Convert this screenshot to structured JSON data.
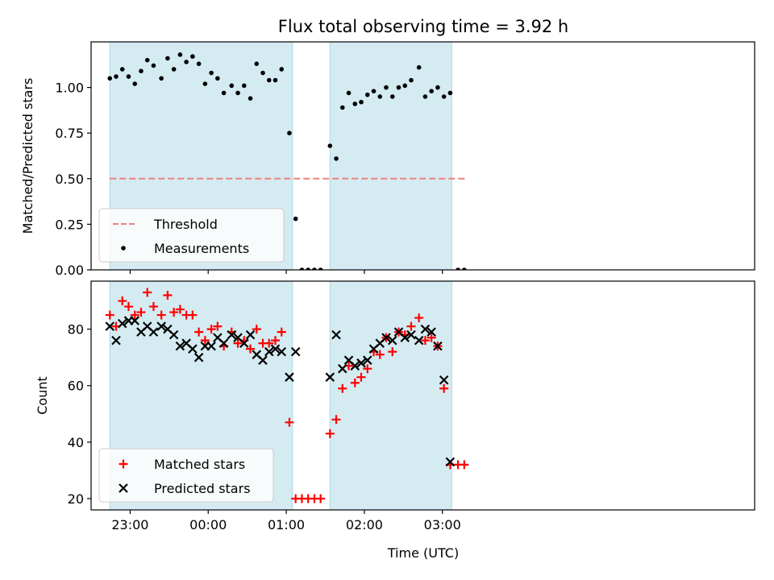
{
  "chart_data": {
    "title": "Flux total observing time = 3.92 h",
    "xlabel": "Time (UTC)",
    "x_unit": "hours since 00:00 UTC",
    "xlim": [
      -0.75,
      3.5
    ],
    "xticks": [
      {
        "value": -0.5,
        "label": "23:00"
      },
      {
        "value": 0.0,
        "label": "00:00"
      },
      {
        "value": 0.5,
        "label": "01:00"
      },
      {
        "value": 1.0,
        "label": "02:00"
      },
      {
        "value": 1.5,
        "label": "03:00"
      }
    ],
    "shaded_regions": [
      [
        -0.63,
        0.54
      ],
      [
        0.78,
        1.56
      ]
    ],
    "shade_color": "#d4ebf1",
    "panels": [
      {
        "type": "scatter",
        "ylabel": "Matched/Predicted stars",
        "ylim": [
          0.0,
          1.25
        ],
        "yticks": [
          0.0,
          0.25,
          0.5,
          0.75,
          1.0
        ],
        "ytick_labels": [
          "0.00",
          "0.25",
          "0.50",
          "0.75",
          "1.00"
        ],
        "threshold": {
          "name": "Threshold",
          "value": 0.5,
          "x_range": [
            -0.63,
            1.65
          ],
          "color": "#f08080"
        },
        "legend": [
          "Threshold",
          "Measurements"
        ],
        "legend_position": "lower-left",
        "series": [
          {
            "name": "Measurements",
            "marker": "dot",
            "color": "#000000",
            "points": [
              [
                -0.63,
                1.05
              ],
              [
                -0.59,
                1.06
              ],
              [
                -0.55,
                1.1
              ],
              [
                -0.51,
                1.06
              ],
              [
                -0.47,
                1.02
              ],
              [
                -0.43,
                1.09
              ],
              [
                -0.39,
                1.15
              ],
              [
                -0.35,
                1.12
              ],
              [
                -0.3,
                1.05
              ],
              [
                -0.26,
                1.16
              ],
              [
                -0.22,
                1.1
              ],
              [
                -0.18,
                1.18
              ],
              [
                -0.14,
                1.14
              ],
              [
                -0.1,
                1.17
              ],
              [
                -0.06,
                1.13
              ],
              [
                -0.02,
                1.02
              ],
              [
                0.02,
                1.08
              ],
              [
                0.06,
                1.05
              ],
              [
                0.1,
                0.97
              ],
              [
                0.15,
                1.01
              ],
              [
                0.19,
                0.97
              ],
              [
                0.23,
                1.01
              ],
              [
                0.27,
                0.94
              ],
              [
                0.31,
                1.13
              ],
              [
                0.35,
                1.08
              ],
              [
                0.39,
                1.04
              ],
              [
                0.43,
                1.04
              ],
              [
                0.47,
                1.1
              ],
              [
                0.52,
                0.75
              ],
              [
                0.56,
                0.28
              ],
              [
                0.6,
                0.0
              ],
              [
                0.64,
                0.0
              ],
              [
                0.68,
                0.0
              ],
              [
                0.72,
                0.0
              ],
              [
                0.78,
                0.68
              ],
              [
                0.82,
                0.61
              ],
              [
                0.86,
                0.89
              ],
              [
                0.9,
                0.97
              ],
              [
                0.94,
                0.91
              ],
              [
                0.98,
                0.92
              ],
              [
                1.02,
                0.96
              ],
              [
                1.06,
                0.98
              ],
              [
                1.1,
                0.95
              ],
              [
                1.14,
                1.0
              ],
              [
                1.18,
                0.95
              ],
              [
                1.22,
                1.0
              ],
              [
                1.26,
                1.01
              ],
              [
                1.3,
                1.04
              ],
              [
                1.35,
                1.11
              ],
              [
                1.39,
                0.95
              ],
              [
                1.43,
                0.98
              ],
              [
                1.47,
                1.0
              ],
              [
                1.51,
                0.95
              ],
              [
                1.55,
                0.97
              ],
              [
                1.6,
                0.0
              ],
              [
                1.64,
                0.0
              ]
            ]
          }
        ]
      },
      {
        "type": "scatter",
        "ylabel": "Count",
        "ylim": [
          16,
          97
        ],
        "yticks": [
          20,
          40,
          60,
          80
        ],
        "ytick_labels": [
          "20",
          "40",
          "60",
          "80"
        ],
        "legend": [
          "Matched stars",
          "Predicted stars"
        ],
        "legend_position": "lower-left",
        "series": [
          {
            "name": "Matched stars",
            "marker": "plus",
            "color": "#ff0000",
            "points": [
              [
                -0.63,
                85
              ],
              [
                -0.59,
                81
              ],
              [
                -0.55,
                90
              ],
              [
                -0.51,
                88
              ],
              [
                -0.47,
                85
              ],
              [
                -0.43,
                86
              ],
              [
                -0.39,
                93
              ],
              [
                -0.35,
                88
              ],
              [
                -0.3,
                85
              ],
              [
                -0.26,
                92
              ],
              [
                -0.22,
                86
              ],
              [
                -0.18,
                87
              ],
              [
                -0.14,
                85
              ],
              [
                -0.1,
                85
              ],
              [
                -0.06,
                79
              ],
              [
                -0.02,
                76
              ],
              [
                0.02,
                80
              ],
              [
                0.06,
                81
              ],
              [
                0.1,
                74
              ],
              [
                0.15,
                79
              ],
              [
                0.19,
                75
              ],
              [
                0.23,
                76
              ],
              [
                0.27,
                73
              ],
              [
                0.31,
                80
              ],
              [
                0.35,
                75
              ],
              [
                0.39,
                75
              ],
              [
                0.43,
                76
              ],
              [
                0.47,
                79
              ],
              [
                0.52,
                47
              ],
              [
                0.56,
                20
              ],
              [
                0.6,
                20
              ],
              [
                0.64,
                20
              ],
              [
                0.68,
                20
              ],
              [
                0.72,
                20
              ],
              [
                0.78,
                43
              ],
              [
                0.82,
                48
              ],
              [
                0.86,
                59
              ],
              [
                0.9,
                67
              ],
              [
                0.94,
                61
              ],
              [
                0.98,
                63
              ],
              [
                1.02,
                66
              ],
              [
                1.06,
                72
              ],
              [
                1.1,
                71
              ],
              [
                1.14,
                77
              ],
              [
                1.18,
                72
              ],
              [
                1.22,
                79
              ],
              [
                1.26,
                78
              ],
              [
                1.3,
                81
              ],
              [
                1.35,
                84
              ],
              [
                1.39,
                76
              ],
              [
                1.43,
                77
              ],
              [
                1.47,
                74
              ],
              [
                1.51,
                59
              ],
              [
                1.55,
                32
              ],
              [
                1.6,
                32
              ],
              [
                1.64,
                32
              ]
            ]
          },
          {
            "name": "Predicted stars",
            "marker": "x",
            "color": "#000000",
            "points": [
              [
                -0.63,
                81
              ],
              [
                -0.59,
                76
              ],
              [
                -0.55,
                82
              ],
              [
                -0.51,
                83
              ],
              [
                -0.47,
                83
              ],
              [
                -0.43,
                79
              ],
              [
                -0.39,
                81
              ],
              [
                -0.35,
                79
              ],
              [
                -0.3,
                81
              ],
              [
                -0.26,
                80
              ],
              [
                -0.22,
                78
              ],
              [
                -0.18,
                74
              ],
              [
                -0.14,
                75
              ],
              [
                -0.1,
                73
              ],
              [
                -0.06,
                70
              ],
              [
                -0.02,
                74
              ],
              [
                0.02,
                74
              ],
              [
                0.06,
                77
              ],
              [
                0.1,
                75
              ],
              [
                0.15,
                78
              ],
              [
                0.19,
                77
              ],
              [
                0.23,
                75
              ],
              [
                0.27,
                78
              ],
              [
                0.31,
                71
              ],
              [
                0.35,
                69
              ],
              [
                0.39,
                72
              ],
              [
                0.43,
                73
              ],
              [
                0.47,
                72
              ],
              [
                0.52,
                63
              ],
              [
                0.56,
                72
              ],
              [
                0.78,
                63
              ],
              [
                0.82,
                78
              ],
              [
                0.86,
                66
              ],
              [
                0.9,
                69
              ],
              [
                0.94,
                67
              ],
              [
                0.98,
                68
              ],
              [
                1.02,
                69
              ],
              [
                1.06,
                73
              ],
              [
                1.1,
                75
              ],
              [
                1.14,
                77
              ],
              [
                1.18,
                76
              ],
              [
                1.22,
                79
              ],
              [
                1.26,
                77
              ],
              [
                1.3,
                78
              ],
              [
                1.35,
                76
              ],
              [
                1.39,
                80
              ],
              [
                1.43,
                79
              ],
              [
                1.47,
                74
              ],
              [
                1.51,
                62
              ],
              [
                1.55,
                33
              ]
            ]
          }
        ]
      }
    ]
  }
}
